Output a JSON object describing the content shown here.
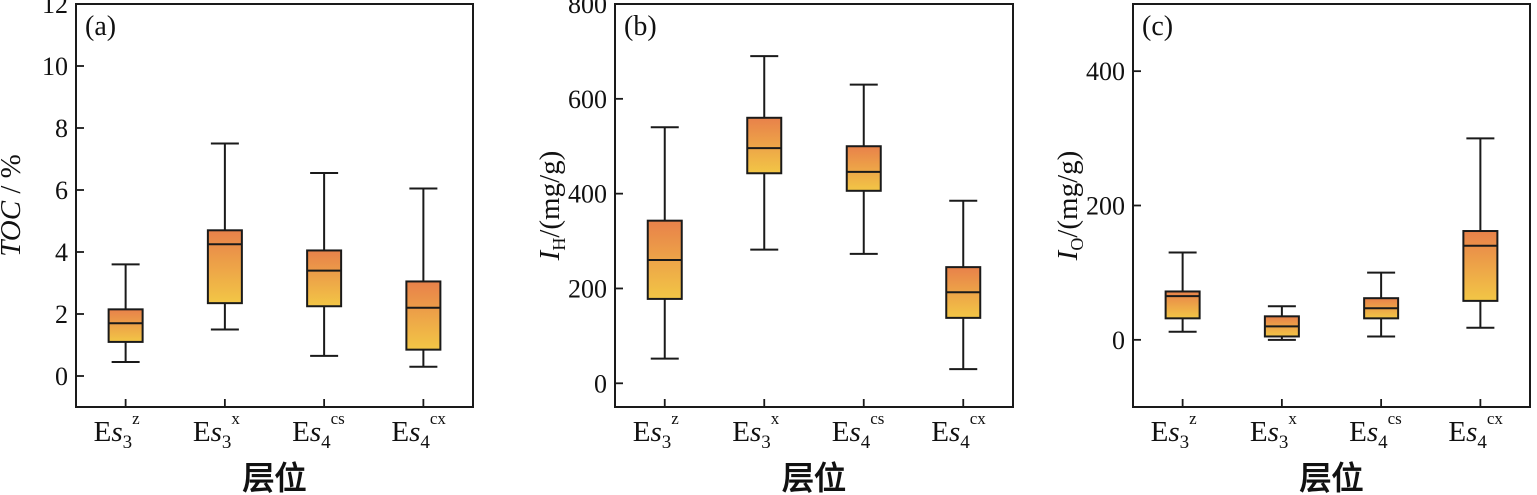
{
  "chart_data": [
    {
      "panel_label": "(a)",
      "type": "box",
      "xlabel": "层位",
      "ylabel": {
        "italic": "TOC",
        "rest": " / %"
      },
      "ylim": [
        -1,
        12
      ],
      "yticks": [
        0,
        2,
        4,
        6,
        8,
        10,
        12
      ],
      "categories": [
        {
          "base": "E",
          "italic": "s",
          "sub": "3",
          "sup": "z"
        },
        {
          "base": "E",
          "italic": "s",
          "sub": "3",
          "sup": "x"
        },
        {
          "base": "E",
          "italic": "s",
          "sub": "4",
          "sup": "cs"
        },
        {
          "base": "E",
          "italic": "s",
          "sub": "4",
          "sup": "cx"
        }
      ],
      "boxes": [
        {
          "min": 0.45,
          "q1": 1.1,
          "median": 1.7,
          "q3": 2.15,
          "max": 3.6
        },
        {
          "min": 1.5,
          "q1": 2.35,
          "median": 4.25,
          "q3": 4.7,
          "max": 7.5
        },
        {
          "min": 0.65,
          "q1": 2.25,
          "median": 3.4,
          "q3": 4.05,
          "max": 6.55
        },
        {
          "min": 0.3,
          "q1": 0.85,
          "median": 2.2,
          "q3": 3.05,
          "max": 6.05
        }
      ]
    },
    {
      "panel_label": "(b)",
      "type": "box",
      "xlabel": "层位",
      "ylabel": {
        "italic": "I",
        "sub": "H",
        "rest": "/(mg/g)"
      },
      "ylim": [
        -50,
        800
      ],
      "yticks": [
        0,
        200,
        400,
        600,
        800
      ],
      "categories": [
        {
          "base": "E",
          "italic": "s",
          "sub": "3",
          "sup": "z"
        },
        {
          "base": "E",
          "italic": "s",
          "sub": "3",
          "sup": "x"
        },
        {
          "base": "E",
          "italic": "s",
          "sub": "4",
          "sup": "cs"
        },
        {
          "base": "E",
          "italic": "s",
          "sub": "4",
          "sup": "cx"
        }
      ],
      "boxes": [
        {
          "min": 52,
          "q1": 178,
          "median": 260,
          "q3": 343,
          "max": 540
        },
        {
          "min": 282,
          "q1": 443,
          "median": 496,
          "q3": 560,
          "max": 690
        },
        {
          "min": 273,
          "q1": 406,
          "median": 446,
          "q3": 500,
          "max": 630
        },
        {
          "min": 30,
          "q1": 138,
          "median": 192,
          "q3": 245,
          "max": 385
        }
      ]
    },
    {
      "panel_label": "(c)",
      "type": "box",
      "xlabel": "层位",
      "ylabel": {
        "italic": "I",
        "sub": "O",
        "rest": "/(mg/g)"
      },
      "ylim": [
        -100,
        500
      ],
      "yticks": [
        0,
        200,
        400
      ],
      "categories": [
        {
          "base": "E",
          "italic": "s",
          "sub": "3",
          "sup": "z"
        },
        {
          "base": "E",
          "italic": "s",
          "sub": "3",
          "sup": "x"
        },
        {
          "base": "E",
          "italic": "s",
          "sub": "4",
          "sup": "cs"
        },
        {
          "base": "E",
          "italic": "s",
          "sub": "4",
          "sup": "cx"
        }
      ],
      "boxes": [
        {
          "min": 12,
          "q1": 32,
          "median": 65,
          "q3": 72,
          "max": 130
        },
        {
          "min": 0,
          "q1": 5,
          "median": 20,
          "q3": 35,
          "max": 50
        },
        {
          "min": 5,
          "q1": 32,
          "median": 47,
          "q3": 62,
          "max": 100
        },
        {
          "min": 18,
          "q1": 58,
          "median": 140,
          "q3": 162,
          "max": 300
        }
      ]
    }
  ],
  "colors": {
    "box_top": "#e8814a",
    "box_bottom": "#f2c646",
    "stroke": "#1a1a1a"
  }
}
